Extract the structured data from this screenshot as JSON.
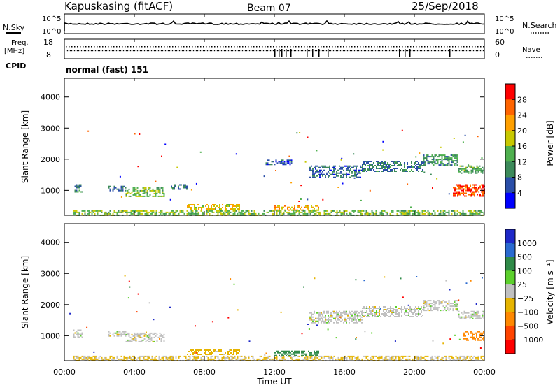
{
  "header": {
    "station": "Kapuskasing (fitACF)",
    "beam": "Beam 07",
    "date": "25/Sep/2018"
  },
  "panels": {
    "nsky_label": "N.Sky",
    "nsearch_label": "N.Search",
    "noise_ticks": [
      "10^5",
      "10^0"
    ],
    "freq_label_1": "Freq.",
    "freq_label_2": "[MHz]",
    "freq_ticks": [
      "18",
      "8"
    ],
    "nave_label": "Nave",
    "nave_ticks": [
      "60",
      "0"
    ],
    "cpid_label": "CPID",
    "cpid_value": "normal (fast) 151"
  },
  "colors": {
    "power": [
      "#0000ff",
      "#2a4ea8",
      "#3c8a5a",
      "#4fb04f",
      "#c8c800",
      "#ffa000",
      "#ff6400",
      "#ff0000"
    ],
    "velocity": [
      "#1e28c8",
      "#2a6ad0",
      "#2f8a48",
      "#5cd02c",
      "#c0c0c0",
      "#e6b400",
      "#ff8800",
      "#ff4400",
      "#ff0000"
    ],
    "ground": "#b4b4b4"
  },
  "chart_data": [
    {
      "type": "heatmap",
      "name": "power",
      "ylabel": "Slant Range [km]",
      "ylim": [
        200,
        4600
      ],
      "yticks": [
        "1000",
        "2000",
        "3000",
        "4000"
      ],
      "xlim": [
        0,
        24
      ],
      "colorbar_label": "Power [dB]",
      "colorbar_ticks": [
        "4",
        "8",
        "12",
        "16",
        "20",
        "24",
        "28"
      ],
      "colorbar_range": [
        0,
        30
      ],
      "regions": [
        {
          "t0": 0.5,
          "t1": 1.0,
          "r0": 950,
          "r1": 1200,
          "v": 9
        },
        {
          "t0": 2.5,
          "t1": 3.5,
          "r0": 1000,
          "r1": 1150,
          "v": 8
        },
        {
          "t0": 3.5,
          "t1": 5.7,
          "r0": 800,
          "r1": 1100,
          "v": 14
        },
        {
          "t0": 6.0,
          "t1": 7.0,
          "r0": 1050,
          "r1": 1200,
          "v": 8
        },
        {
          "t0": 7.0,
          "t1": 10.0,
          "r0": 420,
          "r1": 560,
          "v": 18
        },
        {
          "t0": 12.0,
          "t1": 14.5,
          "r0": 380,
          "r1": 520,
          "v": 20
        },
        {
          "t0": 11.5,
          "t1": 13.0,
          "r0": 1850,
          "r1": 1990,
          "v": 6
        },
        {
          "t0": 14.0,
          "t1": 17.0,
          "r0": 1400,
          "r1": 1800,
          "v": 7
        },
        {
          "t0": 17.0,
          "t1": 20.5,
          "r0": 1600,
          "r1": 1950,
          "v": 8
        },
        {
          "t0": 20.5,
          "t1": 22.5,
          "r0": 1800,
          "r1": 2150,
          "v": 10
        },
        {
          "t0": 22.5,
          "t1": 24.0,
          "r0": 1550,
          "r1": 1800,
          "v": 12
        },
        {
          "t0": 22.2,
          "t1": 24.0,
          "r0": 800,
          "r1": 1200,
          "v": 26
        },
        {
          "t0": 0.5,
          "t1": 24.0,
          "r0": 220,
          "r1": 360,
          "v": 14
        }
      ]
    },
    {
      "type": "heatmap",
      "name": "velocity",
      "ylabel": "Slant Range [km]",
      "ylim": [
        200,
        4600
      ],
      "yticks": [
        "1000",
        "2000",
        "3000",
        "4000"
      ],
      "xlim": [
        0,
        24
      ],
      "colorbar_label": "Velocity [m s⁻¹]",
      "colorbar_ticks": [
        "1000",
        "500",
        "100",
        "25",
        "−25",
        "−100",
        "−500",
        "−1000"
      ],
      "colorbar_range": [
        -1000,
        1000
      ],
      "regions": [
        {
          "t0": 0.5,
          "t1": 1.0,
          "r0": 950,
          "r1": 1200,
          "v": 0
        },
        {
          "t0": 2.5,
          "t1": 3.5,
          "r0": 1000,
          "r1": 1150,
          "v": 0
        },
        {
          "t0": 3.5,
          "t1": 5.7,
          "r0": 800,
          "r1": 1100,
          "v": 0
        },
        {
          "t0": 7.0,
          "t1": 10.0,
          "r0": 420,
          "r1": 560,
          "v": -50
        },
        {
          "t0": 12.0,
          "t1": 14.5,
          "r0": 380,
          "r1": 520,
          "v": 150
        },
        {
          "t0": 14.0,
          "t1": 17.0,
          "r0": 1400,
          "r1": 1800,
          "v": 0
        },
        {
          "t0": 17.0,
          "t1": 20.5,
          "r0": 1600,
          "r1": 1950,
          "v": 0
        },
        {
          "t0": 20.5,
          "t1": 22.5,
          "r0": 1800,
          "r1": 2150,
          "v": 0
        },
        {
          "t0": 22.5,
          "t1": 24.0,
          "r0": 1550,
          "r1": 1800,
          "v": 0
        },
        {
          "t0": 22.8,
          "t1": 24.0,
          "r0": 850,
          "r1": 1150,
          "v": -200
        },
        {
          "t0": 0.5,
          "t1": 24.0,
          "r0": 220,
          "r1": 360,
          "v": -30
        }
      ]
    }
  ],
  "time_axis": {
    "ticks": [
      "00:00",
      "04:00",
      "08:00",
      "12:00",
      "16:00",
      "20:00",
      "00:00"
    ],
    "label": "Time UT"
  }
}
